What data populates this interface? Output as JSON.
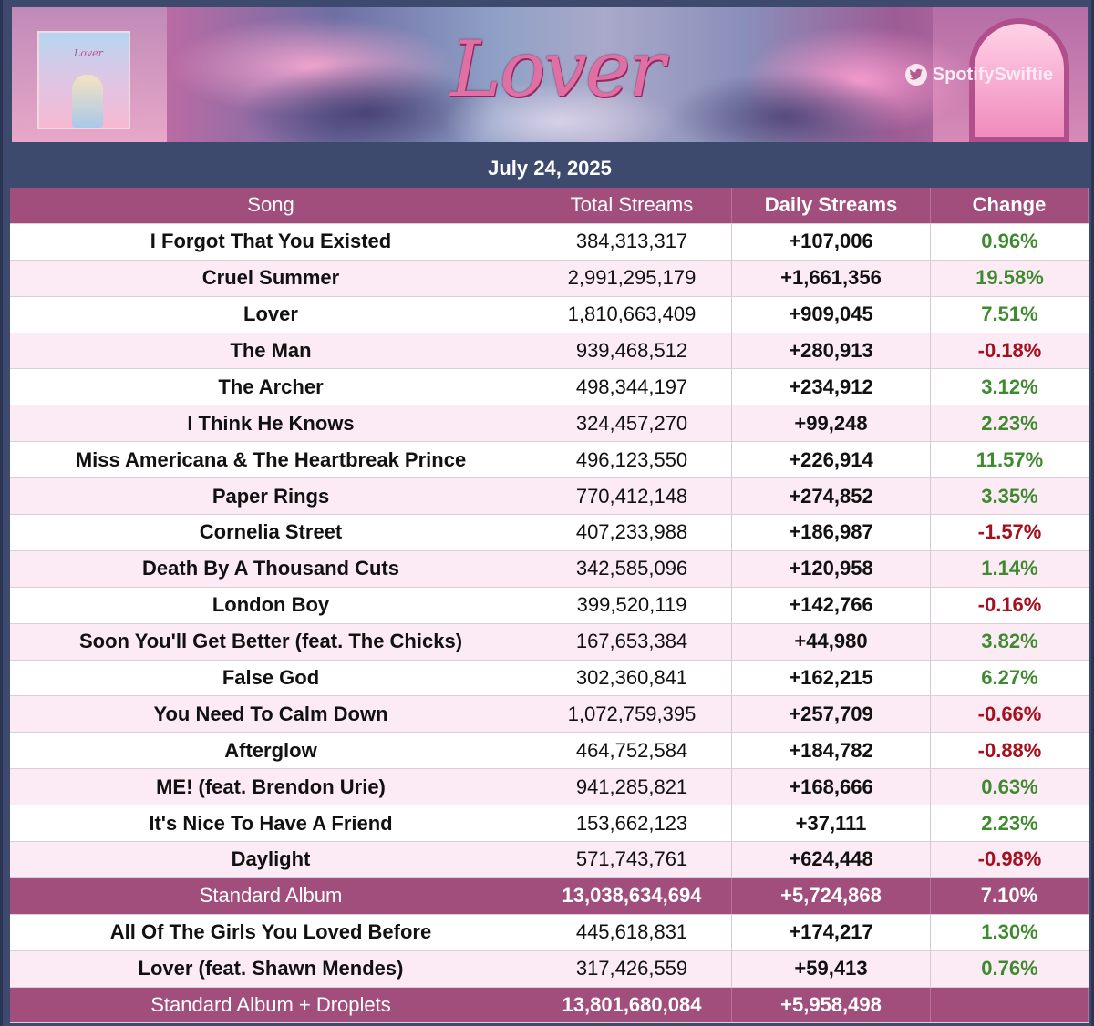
{
  "banner": {
    "cover_title": "Lover",
    "logo_text": "Lover",
    "handle": "SpotifySwiftie",
    "handle_icon": "twitter-bird-icon"
  },
  "date": "July 24, 2025",
  "columns": {
    "song": "Song",
    "total": "Total Streams",
    "daily": "Daily Streams",
    "change": "Change"
  },
  "colors": {
    "header_bg": "#a14e7c",
    "positive": "#3e8a2e",
    "negative": "#a3101e",
    "row_pink": "#fcebf5"
  },
  "rows": [
    {
      "song": "I Forgot That You Existed",
      "total": "384,313,317",
      "daily": "+107,006",
      "change": "0.96%"
    },
    {
      "song": "Cruel Summer",
      "total": "2,991,295,179",
      "daily": "+1,661,356",
      "change": "19.58%"
    },
    {
      "song": "Lover",
      "total": "1,810,663,409",
      "daily": "+909,045",
      "change": "7.51%"
    },
    {
      "song": "The Man",
      "total": "939,468,512",
      "daily": "+280,913",
      "change": "-0.18%"
    },
    {
      "song": "The Archer",
      "total": "498,344,197",
      "daily": "+234,912",
      "change": "3.12%"
    },
    {
      "song": "I Think He Knows",
      "total": "324,457,270",
      "daily": "+99,248",
      "change": "2.23%"
    },
    {
      "song": "Miss Americana & The Heartbreak Prince",
      "total": "496,123,550",
      "daily": "+226,914",
      "change": "11.57%"
    },
    {
      "song": "Paper Rings",
      "total": "770,412,148",
      "daily": "+274,852",
      "change": "3.35%"
    },
    {
      "song": "Cornelia Street",
      "total": "407,233,988",
      "daily": "+186,987",
      "change": "-1.57%"
    },
    {
      "song": "Death By A Thousand Cuts",
      "total": "342,585,096",
      "daily": "+120,958",
      "change": "1.14%"
    },
    {
      "song": "London Boy",
      "total": "399,520,119",
      "daily": "+142,766",
      "change": "-0.16%"
    },
    {
      "song": "Soon You'll Get Better (feat. The Chicks)",
      "total": "167,653,384",
      "daily": "+44,980",
      "change": "3.82%"
    },
    {
      "song": "False God",
      "total": "302,360,841",
      "daily": "+162,215",
      "change": "6.27%"
    },
    {
      "song": "You Need To Calm Down",
      "total": "1,072,759,395",
      "daily": "+257,709",
      "change": "-0.66%"
    },
    {
      "song": "Afterglow",
      "total": "464,752,584",
      "daily": "+184,782",
      "change": "-0.88%"
    },
    {
      "song": "ME! (feat. Brendon Urie)",
      "total": "941,285,821",
      "daily": "+168,666",
      "change": "0.63%"
    },
    {
      "song": "It's Nice To Have A Friend",
      "total": "153,662,123",
      "daily": "+37,111",
      "change": "2.23%"
    },
    {
      "song": "Daylight",
      "total": "571,743,761",
      "daily": "+624,448",
      "change": "-0.98%"
    }
  ],
  "standard_total": {
    "song": "Standard Album",
    "total": "13,038,634,694",
    "daily": "+5,724,868",
    "change": "7.10%"
  },
  "droplet_rows": [
    {
      "song": "All Of The Girls You Loved Before",
      "total": "445,618,831",
      "daily": "+174,217",
      "change": "1.30%"
    },
    {
      "song": "Lover (feat. Shawn Mendes)",
      "total": "317,426,559",
      "daily": "+59,413",
      "change": "0.76%"
    }
  ],
  "droplets_total": {
    "song": "Standard Album + Droplets",
    "total": "13,801,680,084",
    "daily": "+5,958,498",
    "change": ""
  }
}
